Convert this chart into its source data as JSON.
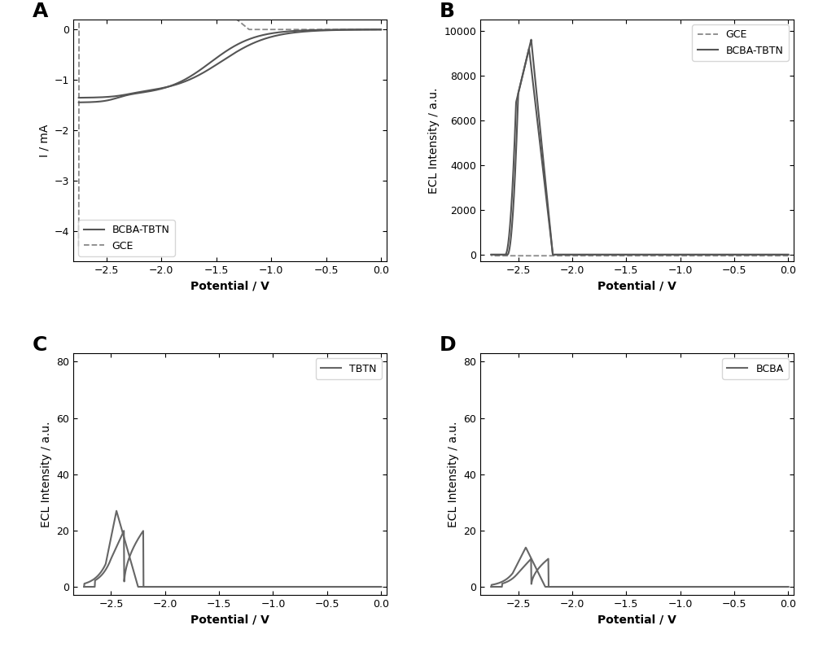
{
  "panel_labels": [
    "A",
    "B",
    "C",
    "D"
  ],
  "panel_label_fontsize": 18,
  "panel_label_fontweight": "bold",
  "A": {
    "xlabel": "Potential / V",
    "ylabel": "I / mA",
    "xlim": [
      -2.8,
      0.05
    ],
    "ylim": [
      -4.6,
      0.2
    ],
    "xticks": [
      -2.5,
      -2.0,
      -1.5,
      -1.0,
      -0.5,
      0.0
    ],
    "yticks": [
      0,
      -1,
      -2,
      -3,
      -4
    ],
    "line_color": "#555555",
    "line_color_dashed": "#888888"
  },
  "B": {
    "xlabel": "Potential / V",
    "ylabel": "ECL Intensity / a.u.",
    "xlim": [
      -2.85,
      0.05
    ],
    "ylim": [
      -300,
      10500
    ],
    "xticks": [
      -2.5,
      -2.0,
      -1.5,
      -1.0,
      -0.5,
      0.0
    ],
    "yticks": [
      0,
      2000,
      4000,
      6000,
      8000,
      10000
    ],
    "line_color": "#555555",
    "line_color_dashed": "#999999"
  },
  "C": {
    "xlabel": "Potential / V",
    "ylabel": "ECL Intensity / a.u.",
    "xlim": [
      -2.85,
      0.05
    ],
    "ylim": [
      -3,
      83
    ],
    "xticks": [
      -2.5,
      -2.0,
      -1.5,
      -1.0,
      -0.5,
      0.0
    ],
    "yticks": [
      0,
      20,
      40,
      60,
      80
    ],
    "line_color": "#666666"
  },
  "D": {
    "xlabel": "Potential / V",
    "ylabel": "ECL Intensity / a.u.",
    "xlim": [
      -2.85,
      0.05
    ],
    "ylim": [
      -3,
      83
    ],
    "xticks": [
      -2.5,
      -2.0,
      -1.5,
      -1.0,
      -0.5,
      0.0
    ],
    "yticks": [
      0,
      20,
      40,
      60,
      80
    ],
    "line_color": "#666666"
  },
  "background_color": "#ffffff",
  "tick_labelsize": 9,
  "axis_labelsize": 10,
  "legend_fontsize": 9,
  "linewidth": 1.3
}
